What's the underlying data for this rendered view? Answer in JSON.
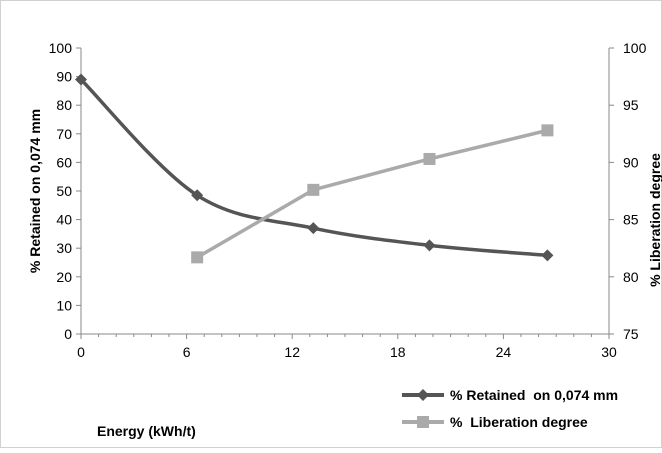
{
  "chart_data": {
    "type": "line",
    "xlabel": "Energy (kWh/t)",
    "ylabel": "% Retained  on 0,074 mm",
    "y2label": "% Liberation degree",
    "xlim": [
      0,
      30
    ],
    "ylim": [
      0,
      100
    ],
    "y2lim": [
      75,
      100
    ],
    "xticks": [
      0,
      6,
      12,
      18,
      24,
      30
    ],
    "yticks": [
      0,
      10,
      20,
      30,
      40,
      50,
      60,
      70,
      80,
      90,
      100
    ],
    "y2ticks": [
      75,
      80,
      85,
      90,
      95,
      100
    ],
    "grid": false,
    "legend_position": "bottom-right",
    "series": [
      {
        "name": "% Retained  on 0,074 mm",
        "axis": "left",
        "color": "#555555",
        "marker": "diamond",
        "smooth": true,
        "x": [
          0,
          6.6,
          13.2,
          19.8,
          26.5
        ],
        "y": [
          89,
          48.5,
          37,
          31,
          27.5
        ]
      },
      {
        "name": "%  Liberation degree",
        "axis": "right",
        "color": "#aaaaaa",
        "marker": "square",
        "smooth": false,
        "x": [
          6.6,
          13.2,
          19.8,
          26.5
        ],
        "y": [
          81.7,
          87.6,
          90.3,
          92.8
        ]
      }
    ]
  }
}
